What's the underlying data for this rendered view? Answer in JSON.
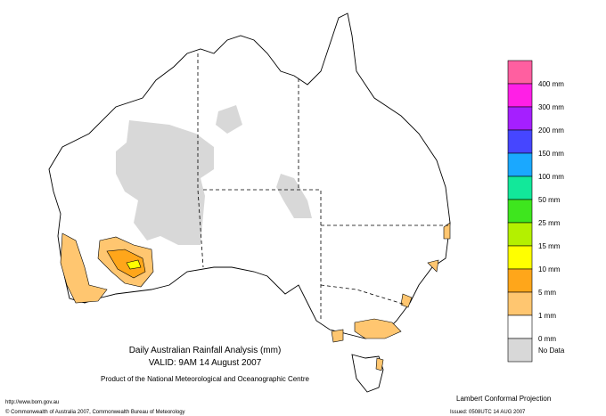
{
  "map": {
    "title": "Daily Australian Rainfall Analysis (mm)",
    "valid": "VALID: 9AM 14 August 2007",
    "product": "Product of the National Meteorological and Oceanographic Centre",
    "url": "http://www.bom.gov.au",
    "copyright": "© Commonwealth of Australia 2007, Commonwealth Bureau of Meteorology",
    "projection": "Lambert Conformal Projection",
    "issued": "Issued: 0508UTC 14 AUG 2007",
    "legend": {
      "colors": [
        "#ff5fa0",
        "#ff1fe6",
        "#a51fff",
        "#4646ff",
        "#1aa8ff",
        "#12e89a",
        "#3ee61e",
        "#b4f000",
        "#ffff00",
        "#ffa61a",
        "#ffc670",
        "#ffffff",
        "#d8d8d8"
      ],
      "labels": [
        "400 mm",
        "300 mm",
        "200 mm",
        "150 mm",
        "100 mm",
        "50 mm",
        "25 mm",
        "15 mm",
        "10 mm",
        "5 mm",
        "1 mm",
        "0 mm",
        "No Data"
      ]
    }
  }
}
